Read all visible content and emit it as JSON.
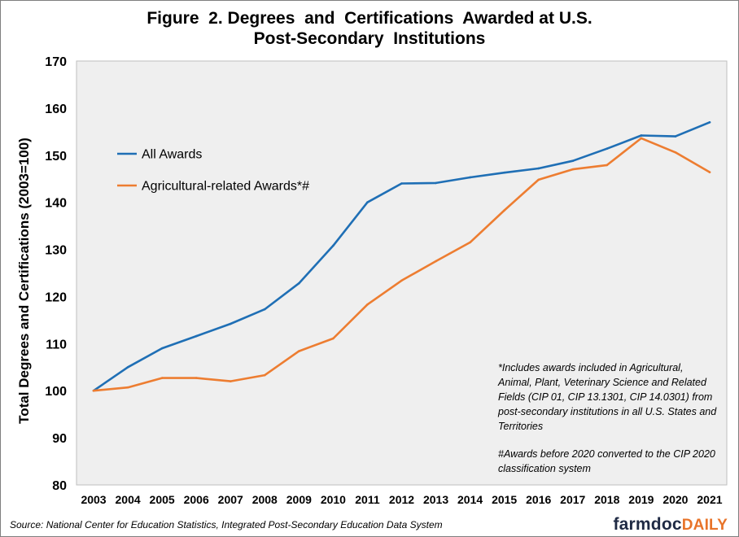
{
  "chart_data": {
    "type": "line",
    "title_lines": [
      "Figure  2. Degrees  and  Certifications  Awarded at U.S.",
      "Post-Secondary  Institutions"
    ],
    "ylabel": "Total Degrees and Certifications (2003=100)",
    "xlabel": "",
    "ylim": [
      80,
      170
    ],
    "yticks": [
      80,
      90,
      100,
      110,
      120,
      130,
      140,
      150,
      160,
      170
    ],
    "grid": false,
    "legend_position": "upper-left",
    "x": [
      "2003",
      "2004",
      "2005",
      "2006",
      "2007",
      "2008",
      "2009",
      "2010",
      "2011",
      "2012",
      "2013",
      "2014",
      "2015",
      "2016",
      "2017",
      "2018",
      "2019",
      "2020",
      "2021"
    ],
    "series": [
      {
        "name": "All Awards",
        "color": "#1f6fb5",
        "values": [
          100,
          105.0,
          109.0,
          111.6,
          114.2,
          117.3,
          122.8,
          130.8,
          140.0,
          144.0,
          144.1,
          145.3,
          146.3,
          147.2,
          148.8,
          151.4,
          154.2,
          154.0,
          157.0
        ]
      },
      {
        "name": "Agricultural-related Awards*#",
        "color": "#ed7d31",
        "values": [
          100,
          100.7,
          102.7,
          102.7,
          102.0,
          103.3,
          108.4,
          111.1,
          118.3,
          123.4,
          127.5,
          131.5,
          138.3,
          144.8,
          147.0,
          147.9,
          153.6,
          150.6,
          146.4
        ]
      }
    ]
  },
  "notes": {
    "footnote1": "*Includes awards included in Agricultural, Animal, Plant, Veterinary Science and Related Fields (CIP 01, CIP 13.1301,  CIP 14.0301)   from post-secondary institutions in all U.S. States and Territories",
    "footnote2": "#Awards before 2020 converted to the CIP 2020  classification system"
  },
  "source": "Source: National Center for Education Statistics, Integrated Post-Secondary Education Data System",
  "logo": {
    "part1": "farmdoc",
    "part2": "DAILY"
  },
  "colors": {
    "plot_background": "#efefef",
    "plot_border": "#bfbfbf"
  }
}
